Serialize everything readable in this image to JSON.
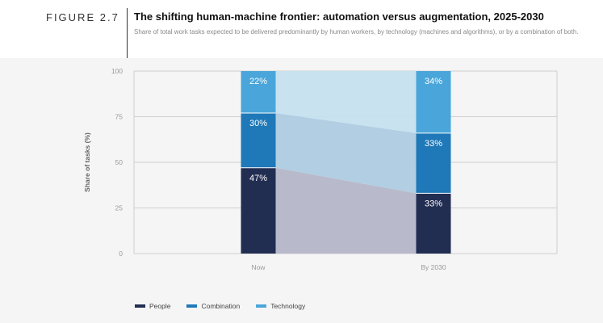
{
  "figure_label": "FIGURE 2.7",
  "title": "The shifting human-machine frontier: automation versus augmentation, 2025-2030",
  "subtitle": "Share of total work tasks expected to be delivered predominantly by human workers, by technology (machines and algorithms), or by a combination of both.",
  "colors": {
    "people": "#222d52",
    "combination": "#1f78b8",
    "technology": "#4aa6da"
  },
  "chart_data": {
    "type": "bar",
    "stacked": true,
    "categories": [
      "Now",
      "By 2030"
    ],
    "series": [
      {
        "name": "People",
        "values": [
          47,
          33
        ],
        "labels": [
          "47%",
          "33%"
        ]
      },
      {
        "name": "Combination",
        "values": [
          30,
          33
        ],
        "labels": [
          "30%",
          "33%"
        ]
      },
      {
        "name": "Technology",
        "values": [
          22,
          34
        ],
        "labels": [
          "22%",
          "34%"
        ]
      }
    ],
    "ylabel": "Share of tasks (%)",
    "ylim": [
      0,
      100
    ],
    "yticks": [
      "0",
      "25",
      "50",
      "75",
      "100"
    ],
    "grid": true,
    "legend_position": "bottom-left"
  }
}
